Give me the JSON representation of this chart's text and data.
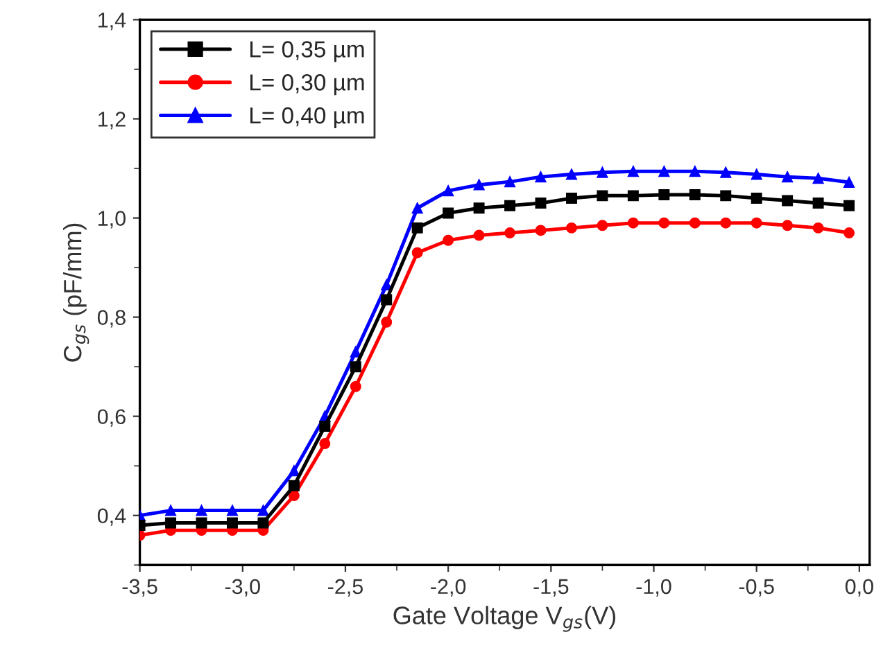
{
  "chart_data": {
    "type": "line",
    "xlabel": "Gate Voltage V$_{gs}$(V)",
    "ylabel": "C$_{gs}$ (pF/mm)",
    "x": [
      -3.5,
      -3.35,
      -3.2,
      -3.05,
      -2.9,
      -2.75,
      -2.6,
      -2.45,
      -2.3,
      -2.15,
      -2.0,
      -1.85,
      -1.7,
      -1.55,
      -1.4,
      -1.25,
      -1.1,
      -0.95,
      -0.8,
      -0.65,
      -0.5,
      -0.35,
      -0.2,
      -0.05
    ],
    "series": [
      {
        "name": "L= 0,35 µm",
        "color": "#000000",
        "marker": "square",
        "values": [
          0.38,
          0.385,
          0.385,
          0.385,
          0.385,
          0.46,
          0.58,
          0.7,
          0.835,
          0.98,
          1.01,
          1.02,
          1.025,
          1.03,
          1.04,
          1.045,
          1.045,
          1.047,
          1.047,
          1.045,
          1.04,
          1.035,
          1.03,
          1.025
        ]
      },
      {
        "name": "L= 0,30 µm",
        "color": "#ff0000",
        "marker": "circle",
        "values": [
          0.36,
          0.37,
          0.37,
          0.37,
          0.37,
          0.44,
          0.545,
          0.66,
          0.79,
          0.93,
          0.955,
          0.965,
          0.97,
          0.975,
          0.98,
          0.985,
          0.99,
          0.99,
          0.99,
          0.99,
          0.99,
          0.985,
          0.98,
          0.97
        ]
      },
      {
        "name": "L= 0,40 µm",
        "color": "#0000ff",
        "marker": "triangle",
        "values": [
          0.4,
          0.41,
          0.41,
          0.41,
          0.41,
          0.49,
          0.6,
          0.73,
          0.865,
          1.02,
          1.055,
          1.067,
          1.073,
          1.083,
          1.088,
          1.092,
          1.094,
          1.094,
          1.094,
          1.092,
          1.088,
          1.083,
          1.08,
          1.072
        ]
      }
    ],
    "xlim": [
      -3.5,
      0.05
    ],
    "xticks": [
      {
        "value": -3.5,
        "label": "-3,5"
      },
      {
        "value": -3.0,
        "label": "-3,0"
      },
      {
        "value": -2.5,
        "label": "-2,5"
      },
      {
        "value": -2.0,
        "label": "-2,0"
      },
      {
        "value": -1.5,
        "label": "-1,5"
      },
      {
        "value": -1.0,
        "label": "-1,0"
      },
      {
        "value": -0.5,
        "label": "-0,5"
      },
      {
        "value": 0.0,
        "label": "0,0"
      }
    ],
    "ylim": [
      0.3,
      1.4
    ],
    "yticks": [
      {
        "value": 0.4,
        "label": "0,4"
      },
      {
        "value": 0.6,
        "label": "0,6"
      },
      {
        "value": 0.8,
        "label": "0,8"
      },
      {
        "value": 1.0,
        "label": "1,0"
      },
      {
        "value": 1.2,
        "label": "1,2"
      },
      {
        "value": 1.4,
        "label": "1,4"
      }
    ],
    "legend": "top left",
    "grid": false,
    "line_style": "solid"
  }
}
